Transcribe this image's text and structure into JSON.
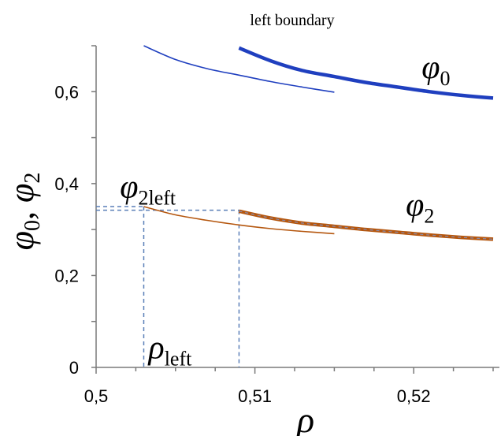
{
  "chart_data": {
    "type": "line",
    "title": "left boundary",
    "xlabel": "ρ",
    "ylabel": {
      "main1": "φ",
      "sub1": "0",
      "sep": ", ",
      "main2": "φ",
      "sub2": "2"
    },
    "xlim": [
      0.5,
      0.525
    ],
    "ylim": [
      0,
      0.7
    ],
    "x_ticks": [
      0.5,
      0.51,
      0.52
    ],
    "x_tick_labels": [
      "0,5",
      "0,51",
      "0,52"
    ],
    "y_ticks": [
      0,
      0.2,
      0.4,
      0.6
    ],
    "y_tick_labels": [
      "0",
      "0,2",
      "0,4",
      "0,6"
    ],
    "series": [
      {
        "color": "#1f3fbf",
        "style": "thin",
        "points": [
          [
            0.503,
            0.7
          ],
          [
            0.505,
            0.67
          ],
          [
            0.507,
            0.65
          ],
          [
            0.509,
            0.636
          ],
          [
            0.511,
            0.622
          ],
          [
            0.513,
            0.61
          ],
          [
            0.515,
            0.599
          ]
        ]
      },
      {
        "color": "#1f3fbf",
        "style": "thick",
        "points": [
          [
            0.509,
            0.695
          ],
          [
            0.511,
            0.667
          ],
          [
            0.513,
            0.646
          ],
          [
            0.515,
            0.633
          ],
          [
            0.517,
            0.62
          ],
          [
            0.519,
            0.61
          ],
          [
            0.521,
            0.6
          ],
          [
            0.523,
            0.592
          ],
          [
            0.525,
            0.586
          ]
        ]
      },
      {
        "color": "#b5570f",
        "style": "thin",
        "points": [
          [
            0.503,
            0.35
          ],
          [
            0.505,
            0.332
          ],
          [
            0.507,
            0.32
          ],
          [
            0.509,
            0.31
          ],
          [
            0.511,
            0.302
          ],
          [
            0.513,
            0.296
          ],
          [
            0.515,
            0.291
          ]
        ]
      },
      {
        "color": "#b5570f",
        "style": "thick-dashed",
        "points": [
          [
            0.509,
            0.34
          ],
          [
            0.511,
            0.325
          ],
          [
            0.513,
            0.314
          ],
          [
            0.515,
            0.307
          ],
          [
            0.517,
            0.3
          ],
          [
            0.519,
            0.294
          ],
          [
            0.521,
            0.288
          ],
          [
            0.523,
            0.283
          ],
          [
            0.525,
            0.279
          ]
        ]
      }
    ],
    "guides": {
      "color": "#5a7fb8",
      "vertical_x": [
        0.503,
        0.509
      ],
      "horizontal": [
        {
          "y": 0.35,
          "to_x": 0.503
        },
        {
          "y": 0.342,
          "to_x": 0.509
        }
      ]
    },
    "annotations": [
      {
        "id": "phi0",
        "main": "φ",
        "sub": "0",
        "x": 0.5205,
        "y": 0.63
      },
      {
        "id": "phi2",
        "main": "φ",
        "sub": "2",
        "x": 0.5195,
        "y": 0.33
      },
      {
        "id": "phi2left",
        "main": "φ",
        "sub": "2left",
        "x": 0.5015,
        "y": 0.37
      },
      {
        "id": "rholeft",
        "main": "ρ",
        "sub": "left",
        "x": 0.5033,
        "y": 0.02
      }
    ]
  }
}
